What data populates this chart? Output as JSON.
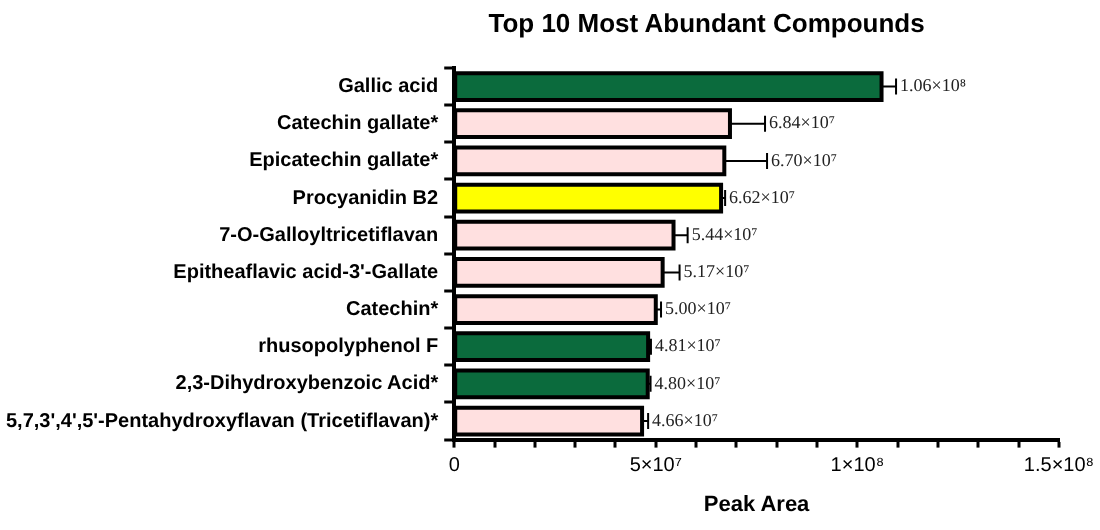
{
  "chart_data": {
    "type": "bar",
    "orientation": "horizontal",
    "title": "Top 10 Most Abundant Compounds",
    "xlabel": "Peak Area",
    "categories": [
      "Gallic acid",
      "Catechin gallate*",
      "Epicatechin gallate*",
      "Procyanidin B2",
      "7-O-Galloyltricetiflavan",
      "Epitheaflavic acid-3'-Gallate",
      "Catechin*",
      "rhusopolyphenol F",
      "2,3-Dihydroxybenzoic Acid*",
      "5,7,3',4',5'-Pentahydroxyflavan (Tricetiflavan)*"
    ],
    "values": [
      106000000,
      68400000,
      67000000,
      66200000,
      54400000,
      51700000,
      50000000,
      48100000,
      48000000,
      46600000
    ],
    "colors": [
      "#0b6b3d",
      "#ffe0e0",
      "#ffe0e0",
      "#ffff00",
      "#ffe0e0",
      "#ffe0e0",
      "#ffe0e0",
      "#0b6b3d",
      "#0b6b3d",
      "#ffe0e0"
    ],
    "errors": [
      3600000,
      8700000,
      10600000,
      1000000,
      3500000,
      4200000,
      1300000,
      700000,
      700000,
      1500000
    ],
    "value_labels": [
      "1.06×10⁸",
      "6.84×10⁷",
      "6.70×10⁷",
      "6.62×10⁷",
      "5.44×10⁷",
      "5.17×10⁷",
      "5.00×10⁷",
      "4.81×10⁷",
      "4.80×10⁷",
      "4.66×10⁷"
    ],
    "xlim": [
      0,
      150000000
    ],
    "xticks": [
      {
        "value": 0,
        "label": "0"
      },
      {
        "value": 10000000,
        "label": null
      },
      {
        "value": 20000000,
        "label": null
      },
      {
        "value": 30000000,
        "label": null
      },
      {
        "value": 40000000,
        "label": null
      },
      {
        "value": 50000000,
        "label": "5×10⁷"
      },
      {
        "value": 60000000,
        "label": null
      },
      {
        "value": 70000000,
        "label": null
      },
      {
        "value": 80000000,
        "label": null
      },
      {
        "value": 90000000,
        "label": null
      },
      {
        "value": 100000000,
        "label": "1×10⁸"
      },
      {
        "value": 110000000,
        "label": null
      },
      {
        "value": 120000000,
        "label": null
      },
      {
        "value": 130000000,
        "label": null
      },
      {
        "value": 140000000,
        "label": null
      },
      {
        "value": 150000000,
        "label": "1.5×10⁸"
      }
    ],
    "grid": false,
    "legend": false
  }
}
